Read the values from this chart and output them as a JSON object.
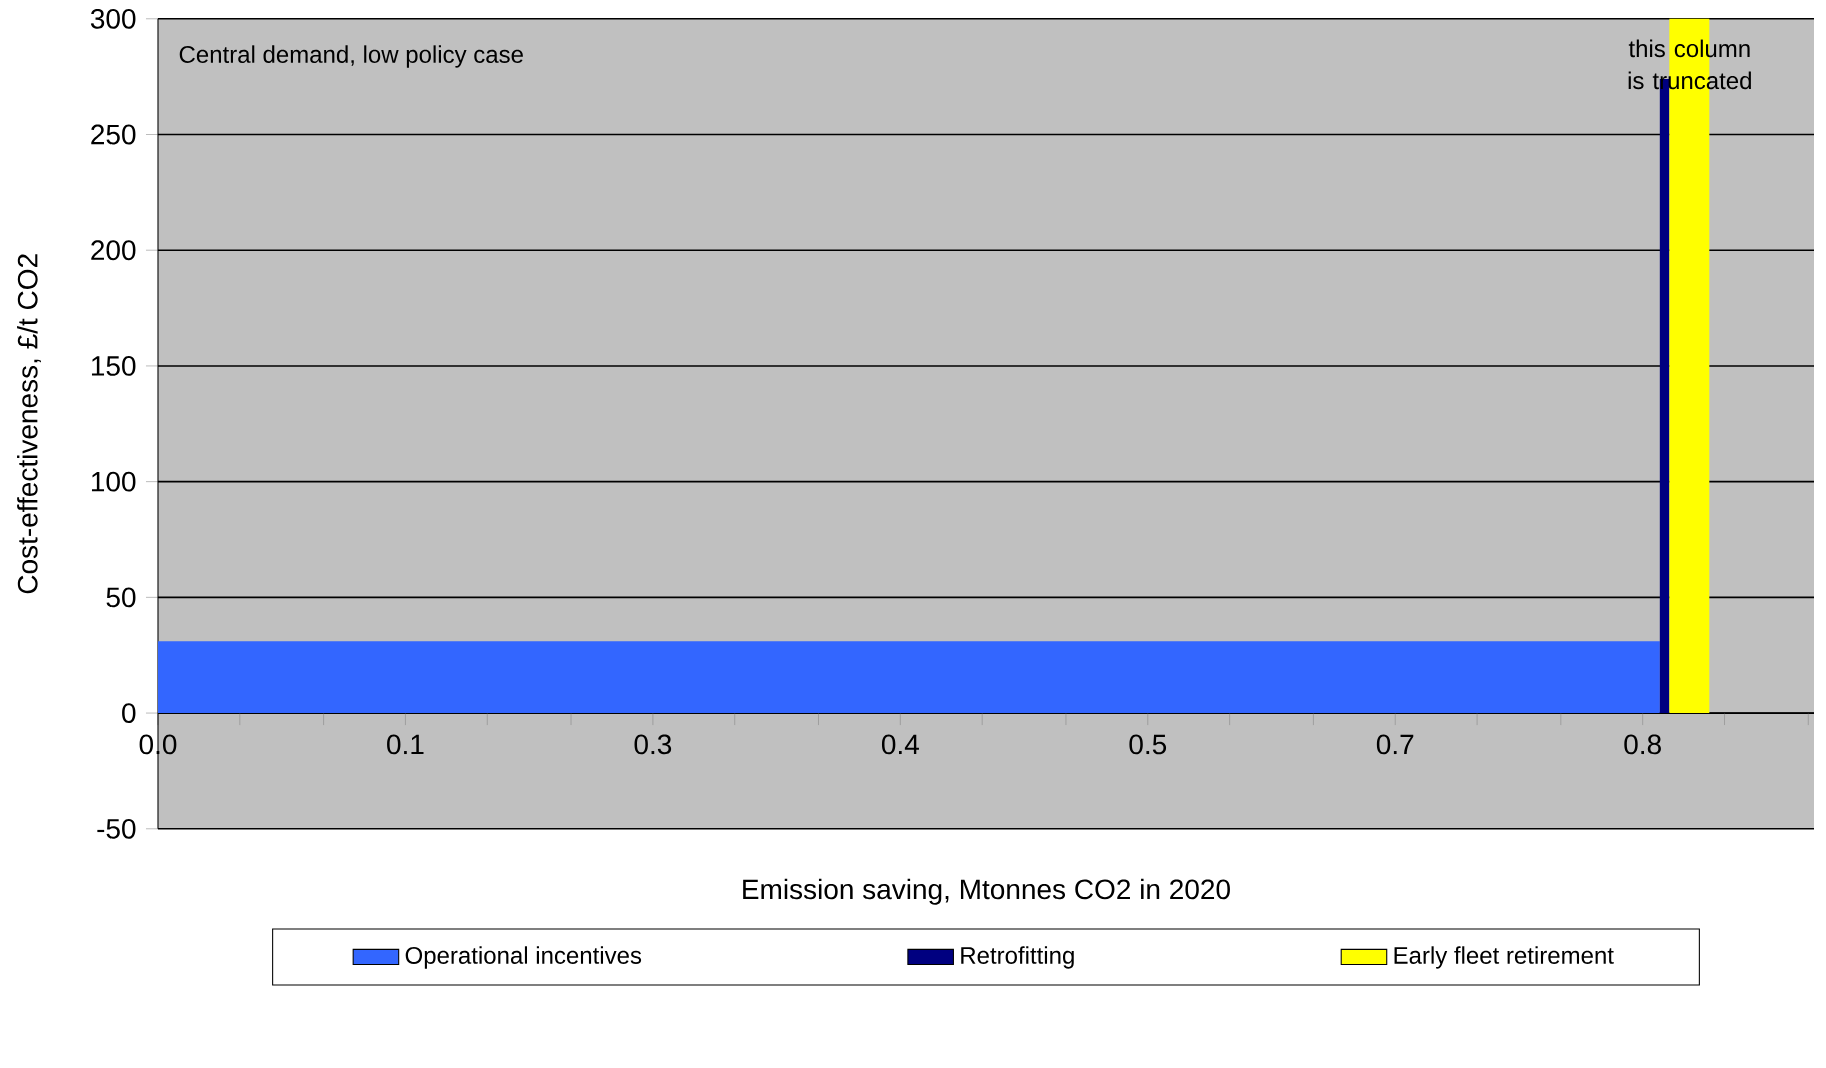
{
  "chart_data": {
    "type": "area",
    "xlabel": "Emission saving, Mtonnes CO2 in 2020",
    "ylabel": "Cost-effectiveness, £/t CO2",
    "series": [
      {
        "name": "Operational incentives",
        "color": "#3366ff",
        "x": [
          0,
          0.789
        ],
        "values": [
          31,
          31
        ]
      },
      {
        "name": "Retrofitting",
        "color": "#000080",
        "x": [
          0.789,
          0.794
        ],
        "values": [
          274,
          274
        ]
      },
      {
        "name": "Early fleet retirement",
        "color": "#ffff00",
        "x": [
          0.794,
          0.815
        ],
        "values": [
          300,
          300
        ]
      }
    ],
    "xlim": [
      0,
      0.87
    ],
    "xticks": [
      {
        "value": 0,
        "label": "0.0"
      },
      {
        "value": 0.043,
        "label": null
      },
      {
        "value": 0.087,
        "label": null
      },
      {
        "value": 0.13,
        "label": "0.1"
      },
      {
        "value": 0.173,
        "label": null
      },
      {
        "value": 0.217,
        "label": null
      },
      {
        "value": 0.26,
        "label": "0.3"
      },
      {
        "value": 0.303,
        "label": null
      },
      {
        "value": 0.347,
        "label": null
      },
      {
        "value": 0.39,
        "label": "0.4"
      },
      {
        "value": 0.433,
        "label": null
      },
      {
        "value": 0.477,
        "label": null
      },
      {
        "value": 0.52,
        "label": "0.5"
      },
      {
        "value": 0.563,
        "label": null
      },
      {
        "value": 0.607,
        "label": null
      },
      {
        "value": 0.65,
        "label": "0.7"
      },
      {
        "value": 0.693,
        "label": null
      },
      {
        "value": 0.737,
        "label": null
      },
      {
        "value": 0.78,
        "label": "0.8"
      },
      {
        "value": 0.823,
        "label": null
      },
      {
        "value": 0.867,
        "label": null
      }
    ],
    "ylim": [
      -50,
      300
    ],
    "yticks": [
      -50,
      0,
      50,
      100,
      150,
      200,
      250,
      300
    ],
    "grid": "y",
    "legend": "bottom",
    "annotations": [
      "Central demand, low policy case",
      "this column is truncated"
    ]
  }
}
